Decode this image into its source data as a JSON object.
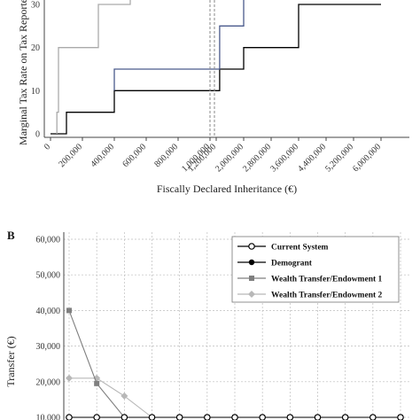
{
  "chart_data": [
    {
      "type": "line",
      "panel": "A",
      "xlabel": "Fiscally Declared Inheritance (€)",
      "ylabel": "Marginal Tax Rate on Tax Reported",
      "ylim": [
        0,
        30
      ],
      "yticks": [
        "0",
        "10",
        "20",
        "30"
      ],
      "xlim": [
        0,
        6000000
      ],
      "axis_break": [
        1000000,
        1200000
      ],
      "xticks": [
        {
          "v": 0,
          "label": "0"
        },
        {
          "v": 200000,
          "label": "200,000"
        },
        {
          "v": 400000,
          "label": "400,000"
        },
        {
          "v": 600000,
          "label": "600,000"
        },
        {
          "v": 800000,
          "label": "800,000"
        },
        {
          "v": 1000000,
          "label": "1,000,000"
        },
        {
          "v": 1200000,
          "label": "1,200,000"
        },
        {
          "v": 2000000,
          "label": "2,000,000"
        },
        {
          "v": 2800000,
          "label": "2,800,000"
        },
        {
          "v": 3600000,
          "label": "3,600,000"
        },
        {
          "v": 4400000,
          "label": "4,400,000"
        },
        {
          "v": 5200000,
          "label": "5,200,000"
        },
        {
          "v": 6000000,
          "label": "6,000,000"
        }
      ],
      "series": [
        {
          "color": "#000000",
          "points": [
            [
              0,
              0
            ],
            [
              100000,
              0
            ],
            [
              100000,
              5
            ],
            [
              400000,
              5
            ],
            [
              400000,
              10
            ],
            [
              1000000,
              10
            ],
            [
              1000000,
              10
            ],
            [
              1300000,
              10
            ],
            [
              1300000,
              15
            ],
            [
              2000000,
              15
            ],
            [
              2000000,
              20
            ],
            [
              3600000,
              20
            ],
            [
              3600000,
              25
            ],
            [
              3600000,
              30
            ],
            [
              6000000,
              30
            ]
          ]
        },
        {
          "color": "#4a5a8c",
          "points": [
            [
              400000,
              10
            ],
            [
              400000,
              15
            ],
            [
              1000000,
              15
            ],
            [
              1000000,
              15
            ],
            [
              1300000,
              15
            ],
            [
              1300000,
              25
            ],
            [
              2000000,
              25
            ],
            [
              2000000,
              30
            ],
            [
              2000000,
              32
            ]
          ]
        },
        {
          "color": "#aaaaaa",
          "points": [
            [
              40000,
              0
            ],
            [
              40000,
              5
            ],
            [
              50000,
              5
            ],
            [
              50000,
              20
            ],
            [
              300000,
              20
            ],
            [
              300000,
              30
            ],
            [
              500000,
              30
            ],
            [
              500000,
              33
            ]
          ]
        }
      ]
    },
    {
      "type": "line",
      "panel": "B",
      "ylabel": "Transfer (€)",
      "ylim": [
        10000,
        60000
      ],
      "yticks": [
        "10,000",
        "20,000",
        "30,000",
        "40,000",
        "50,000",
        "60,000"
      ],
      "series": [
        {
          "name": "Current System",
          "color": "#000000",
          "marker": "open-circle",
          "values": [
            10000,
            10000,
            10000,
            10000,
            10000,
            10000,
            10000,
            10000,
            10000,
            10000,
            10000,
            10000,
            10000
          ]
        },
        {
          "name": "Demogrant",
          "color": "#000000",
          "marker": "filled-circle",
          "values": [
            10000,
            10000,
            10000,
            10000,
            10000,
            10000,
            10000,
            10000,
            10000,
            10000,
            10000,
            10000,
            10000
          ]
        },
        {
          "name": "Wealth Transfer/Endowment 1",
          "color": "#7f7f7f",
          "marker": "square",
          "values": [
            40000,
            19500,
            10000,
            10000,
            10000,
            10000,
            10000,
            10000,
            10000,
            10000,
            10000,
            10000,
            10000
          ]
        },
        {
          "name": "Wealth Transfer/Endowment 2",
          "color": "#b8b8b8",
          "marker": "diamond",
          "values": [
            21000,
            21000,
            16000,
            10000,
            10000,
            10000,
            10000,
            10000,
            10000,
            10000,
            10000,
            10000,
            10000
          ]
        }
      ],
      "legend_position": "top-right",
      "grid": true
    }
  ],
  "panel_b_letter": "B"
}
